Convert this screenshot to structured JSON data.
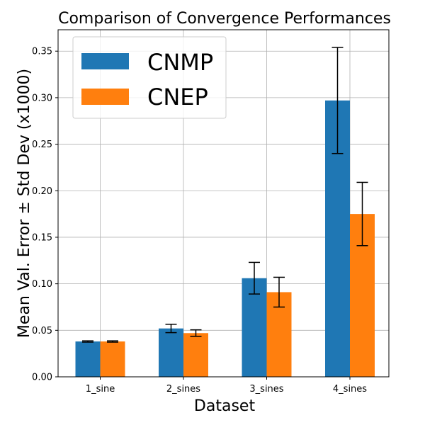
{
  "chart_data": {
    "type": "bar",
    "title": "Comparison of Convergence Performances",
    "xlabel": "Dataset",
    "ylabel": "Mean Val. Error ± Std Dev (x1000)",
    "categories": [
      "1_sine",
      "2_sines",
      "3_sines",
      "4_sines"
    ],
    "ylim": [
      0,
      0.373
    ],
    "yticks": [
      0.0,
      0.05,
      0.1,
      0.15,
      0.2,
      0.25,
      0.3,
      0.35
    ],
    "ytick_labels": [
      "0.00",
      "0.05",
      "0.10",
      "0.15",
      "0.20",
      "0.25",
      "0.30",
      "0.35"
    ],
    "grid": true,
    "legend_position": "top-left",
    "series": [
      {
        "name": "CNMP",
        "color": "#1f77b4",
        "values": [
          0.038,
          0.052,
          0.106,
          0.297
        ],
        "errors": [
          0.0007,
          0.0045,
          0.017,
          0.057
        ]
      },
      {
        "name": "CNEP",
        "color": "#ff7f0e",
        "values": [
          0.038,
          0.047,
          0.091,
          0.175
        ],
        "errors": [
          0.0007,
          0.0035,
          0.016,
          0.034
        ]
      }
    ]
  }
}
